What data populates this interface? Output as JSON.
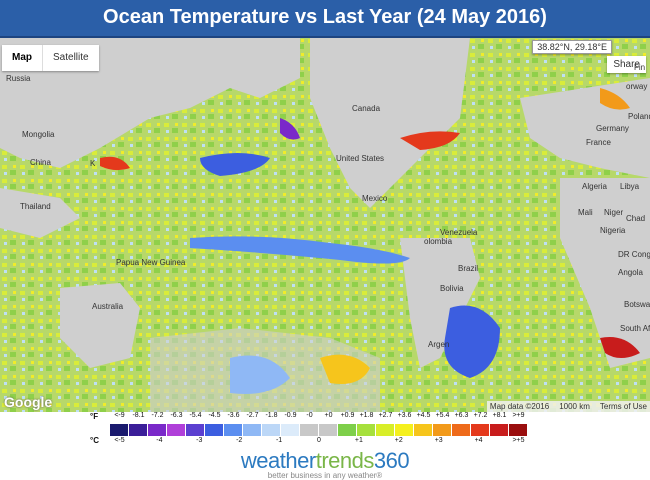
{
  "title": "Ocean Temperature vs Last Year (24 May 2016)",
  "map": {
    "map_type_active": "Map",
    "map_type_other": "Satellite",
    "coordinates": "38.82°N, 29.18°E",
    "share_label": "Share",
    "google_logo": "Google",
    "map_data": "Map data ©2016",
    "scale": "1000 km",
    "terms": "Terms of Use",
    "labels": {
      "russia": "Russia",
      "mongolia": "Mongolia",
      "china": "China",
      "thailand": "Thailand",
      "papua": "Papua New Guinea",
      "australia": "Australia",
      "canada": "Canada",
      "united_states": "United States",
      "mexico": "Mexico",
      "venezuela": "Venezuela",
      "colombia": "olombia",
      "brazil": "Brazil",
      "bolivia": "Bolivia",
      "argentina": "Argen",
      "norway": "orway",
      "finland": "Fin",
      "poland": "Poland",
      "germany": "Germany",
      "france": "France",
      "algeria": "Algeria",
      "libya": "Libya",
      "mali": "Mali",
      "niger": "Niger",
      "chad": "Chad",
      "nigeria": "Nigeria",
      "dr_congo": "DR Congo",
      "angola": "Angola",
      "botswana": "Botswan",
      "south_africa": "South Afr",
      "k": "K"
    }
  },
  "legend": {
    "unit_f": "°F",
    "unit_c": "°C",
    "f_labels": [
      "<-9",
      "-8.1",
      "-7.2",
      "-6.3",
      "-5.4",
      "-4.5",
      "-3.6",
      "-2.7",
      "-1.8",
      "-0.9",
      "-0",
      "+0",
      "+0.9",
      "+1.8",
      "+2.7",
      "+3.6",
      "+4.5",
      "+5.4",
      "+6.3",
      "+7.2",
      "+8.1",
      ">+9"
    ],
    "c_labels": [
      "<-5",
      "-4",
      "-3",
      "-2",
      "-1",
      "0",
      "+1",
      "+2",
      "+3",
      "+4",
      ">+5"
    ],
    "colors": [
      "#1a1a6e",
      "#3b1e99",
      "#7a29c9",
      "#b03fd9",
      "#5b3fd0",
      "#3c5ee0",
      "#5b8ef0",
      "#8fb8f5",
      "#bcd7f7",
      "#dcebfa",
      "#c8c8c8",
      "#c8c8c8",
      "#7ecf4a",
      "#a6e03c",
      "#d8ee28",
      "#f5f01e",
      "#f6c51c",
      "#f29a1a",
      "#ee6a1a",
      "#e4391c",
      "#c81c1c",
      "#9a0e0e"
    ]
  },
  "brand": {
    "name_part1": "weather",
    "name_part2": "trends",
    "name_part3": "360",
    "tagline": "better business in any weather®"
  }
}
